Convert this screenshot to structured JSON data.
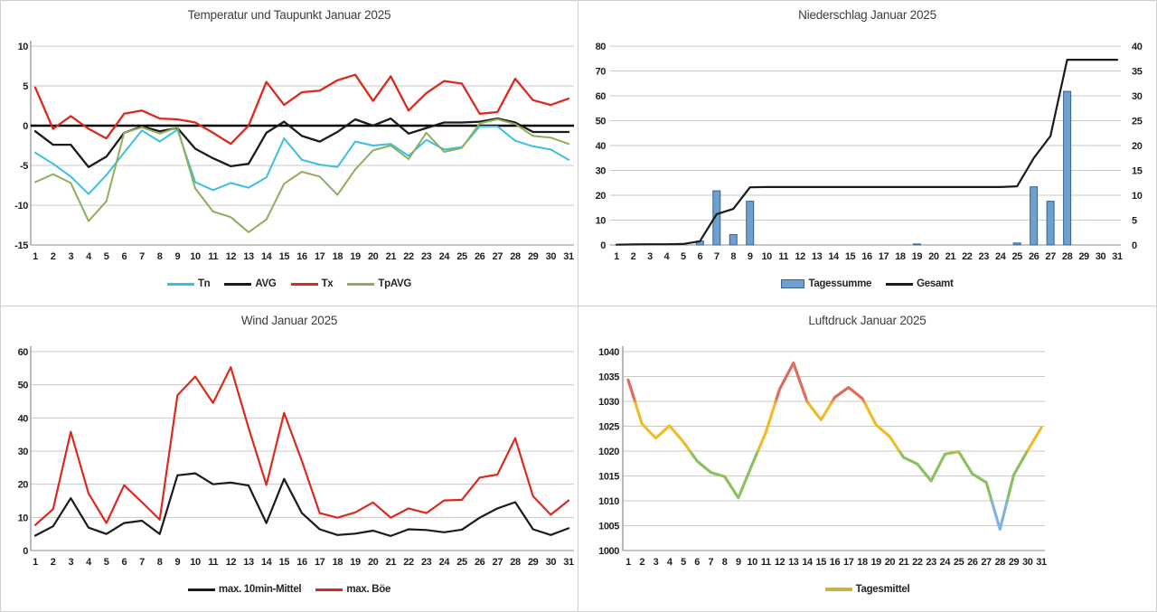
{
  "days": [
    1,
    2,
    3,
    4,
    5,
    6,
    7,
    8,
    9,
    10,
    11,
    12,
    13,
    14,
    15,
    16,
    17,
    18,
    19,
    20,
    21,
    22,
    23,
    24,
    25,
    26,
    27,
    28,
    29,
    30,
    31
  ],
  "chart_data": [
    {
      "key": "temperature",
      "type": "line",
      "title": "Temperatur und Taupunkt Januar 2025",
      "ylim": [
        -15,
        10
      ],
      "yticks": [
        10,
        5,
        0,
        -5,
        -10,
        -15
      ],
      "zero_line": true,
      "grid": true,
      "legend_position": "bottom",
      "series": [
        {
          "name": "Tn",
          "color": "#3bbee3",
          "width": 2,
          "values": [
            -3.4,
            -4.8,
            -6.4,
            -8.6,
            -6.2,
            -3.4,
            -0.6,
            -2.0,
            -0.5,
            -7.1,
            -8.1,
            -7.2,
            -7.8,
            -6.5,
            -1.6,
            -4.3,
            -4.9,
            -5.2,
            -2.0,
            -2.5,
            -2.3,
            -3.8,
            -1.8,
            -3.0,
            -2.7,
            -0.1,
            -0.1,
            -1.9,
            -2.6,
            -3.0,
            -4.3
          ]
        },
        {
          "name": "AVG",
          "color": "#1b1b1b",
          "width": 2.3,
          "values": [
            -0.7,
            -2.4,
            -2.4,
            -5.2,
            -3.9,
            -0.9,
            -0.1,
            -0.7,
            -0.3,
            -2.9,
            -4.1,
            -5.1,
            -4.8,
            -0.9,
            0.5,
            -1.3,
            -2.0,
            -0.8,
            0.8,
            0.0,
            0.9,
            -1.0,
            -0.3,
            0.4,
            0.4,
            0.5,
            0.9,
            0.4,
            -0.8,
            -0.8,
            -0.8
          ]
        },
        {
          "name": "Tx",
          "color": "#dc291e",
          "width": 2.3,
          "values": [
            4.8,
            -0.4,
            1.2,
            -0.4,
            -1.6,
            1.5,
            1.9,
            0.9,
            0.8,
            0.4,
            -0.9,
            -2.3,
            0.0,
            5.5,
            2.6,
            4.2,
            4.4,
            5.7,
            6.4,
            3.1,
            6.2,
            1.9,
            4.1,
            5.6,
            5.3,
            1.5,
            1.7,
            5.9,
            3.2,
            2.6,
            3.4
          ]
        },
        {
          "name": "TpAVG",
          "color": "#8fae59",
          "width": 2,
          "values": [
            -7.1,
            -6.1,
            -7.2,
            -12.0,
            -9.5,
            -0.9,
            -0.2,
            -1.0,
            -0.2,
            -7.9,
            -10.8,
            -11.5,
            -13.4,
            -11.8,
            -7.3,
            -5.8,
            -6.4,
            -8.7,
            -5.5,
            -3.1,
            -2.5,
            -4.2,
            -0.9,
            -3.3,
            -2.8,
            0.3,
            0.8,
            0.2,
            -1.3,
            -1.5,
            -2.3
          ]
        }
      ],
      "legend": [
        {
          "label": "Tn",
          "swatch": "line",
          "color": "#3bbee3"
        },
        {
          "label": "AVG",
          "swatch": "line",
          "color": "#1b1b1b"
        },
        {
          "label": "Tx",
          "swatch": "line",
          "color": "#dc291e"
        },
        {
          "label": "TpAVG",
          "swatch": "line",
          "color": "#8fae59"
        }
      ]
    },
    {
      "key": "precipitation",
      "type": "bar-line",
      "title": "Niederschlag Januar 2025",
      "ylim_left": [
        0,
        80
      ],
      "yticks_left": [
        80,
        70,
        60,
        50,
        40,
        30,
        20,
        10,
        0
      ],
      "ylim_right": [
        0,
        40
      ],
      "yticks_right": [
        40,
        35,
        30,
        25,
        20,
        15,
        10,
        5,
        0
      ],
      "right_axis_color": "#2e74b5",
      "bar_series": {
        "name": "Tagessumme",
        "axis": "right",
        "fill": "#6f9fcb",
        "stroke": "#35638f",
        "values": [
          0,
          0,
          0,
          0,
          0,
          0.8,
          10.9,
          2.1,
          8.8,
          0,
          0,
          0,
          0,
          0,
          0,
          0,
          0,
          0,
          0.2,
          0,
          0,
          0,
          0,
          0,
          0.4,
          11.7,
          8.8,
          30.9,
          0,
          0,
          0
        ]
      },
      "line_series": {
        "name": "Gesamt",
        "axis": "left",
        "color": "#1b1b1b",
        "width": 2.2,
        "values": [
          0.1,
          0.2,
          0.3,
          0.3,
          0.4,
          1.5,
          12.4,
          14.5,
          23.2,
          23.3,
          23.3,
          23.3,
          23.3,
          23.3,
          23.3,
          23.3,
          23.3,
          23.3,
          23.3,
          23.3,
          23.3,
          23.3,
          23.3,
          23.3,
          23.6,
          35.0,
          43.8,
          74.5,
          74.5,
          74.5,
          74.5
        ]
      },
      "legend": [
        {
          "label": "Tagessumme",
          "swatch": "box",
          "color": "#6f9fcb",
          "border": "#35638f"
        },
        {
          "label": "Gesamt",
          "swatch": "line",
          "color": "#1b1b1b"
        }
      ]
    },
    {
      "key": "wind",
      "type": "line",
      "title": "Wind Januar 2025",
      "ylim": [
        0,
        60
      ],
      "yticks": [
        60,
        50,
        40,
        30,
        20,
        10,
        0
      ],
      "grid": true,
      "series": [
        {
          "name": "max. 10min-Mittel",
          "color": "#1b1b1b",
          "width": 2.2,
          "values": [
            4.5,
            7.3,
            15.8,
            6.9,
            5.0,
            8.3,
            9.0,
            5.0,
            22.7,
            23.3,
            20.0,
            20.5,
            19.6,
            8.3,
            21.6,
            11.3,
            6.4,
            4.7,
            5.1,
            6.0,
            4.4,
            6.4,
            6.2,
            5.5,
            6.3,
            9.9,
            12.7,
            14.6,
            6.4,
            4.7,
            6.7
          ]
        },
        {
          "name": "max. Böe",
          "color": "#dc291e",
          "width": 2.2,
          "values": [
            7.7,
            12.5,
            35.8,
            17.2,
            8.3,
            19.7,
            14.6,
            9.3,
            46.8,
            52.5,
            44.5,
            55.3,
            37.0,
            19.8,
            41.5,
            27.0,
            11.3,
            9.9,
            11.5,
            14.5,
            9.9,
            12.7,
            11.3,
            15.1,
            15.3,
            22.0,
            22.9,
            33.9,
            16.4,
            10.8,
            15.1
          ]
        }
      ],
      "legend": [
        {
          "label": "max. 10min-Mittel",
          "swatch": "line",
          "color": "#1b1b1b"
        },
        {
          "label": "max. Böe",
          "swatch": "line",
          "color": "#dc291e"
        }
      ]
    },
    {
      "key": "pressure",
      "type": "line",
      "title": "Luftdruck Januar 2025",
      "ylim": [
        1000,
        1040
      ],
      "yticks": [
        1040,
        1035,
        1030,
        1025,
        1020,
        1015,
        1010,
        1005,
        1000
      ],
      "grid": true,
      "series": [
        {
          "name": "Tagesmittel",
          "width": 3.2,
          "bands": [
            {
              "from": 1030,
              "to": 1040,
              "color": "#e06a5b"
            },
            {
              "from": 1020,
              "to": 1030,
              "color": "#efbd2a"
            },
            {
              "from": 1010,
              "to": 1020,
              "color": "#8cc063"
            },
            {
              "from": 1000,
              "to": 1010,
              "color": "#7fb2e5"
            }
          ],
          "values": [
            1034.3,
            1025.5,
            1022.6,
            1025.1,
            1021.9,
            1018.0,
            1015.7,
            1014.9,
            1010.6,
            1017.3,
            1023.8,
            1032.5,
            1037.7,
            1029.9,
            1026.3,
            1030.8,
            1032.8,
            1030.6,
            1025.3,
            1022.9,
            1018.7,
            1017.4,
            1014.0,
            1019.4,
            1019.9,
            1015.4,
            1013.7,
            1004.3,
            1015.2,
            1020.1,
            1024.7
          ]
        }
      ],
      "legend": [
        {
          "label": "Tagesmittel",
          "swatch": "thick",
          "color": "#c6b34b"
        }
      ]
    }
  ]
}
